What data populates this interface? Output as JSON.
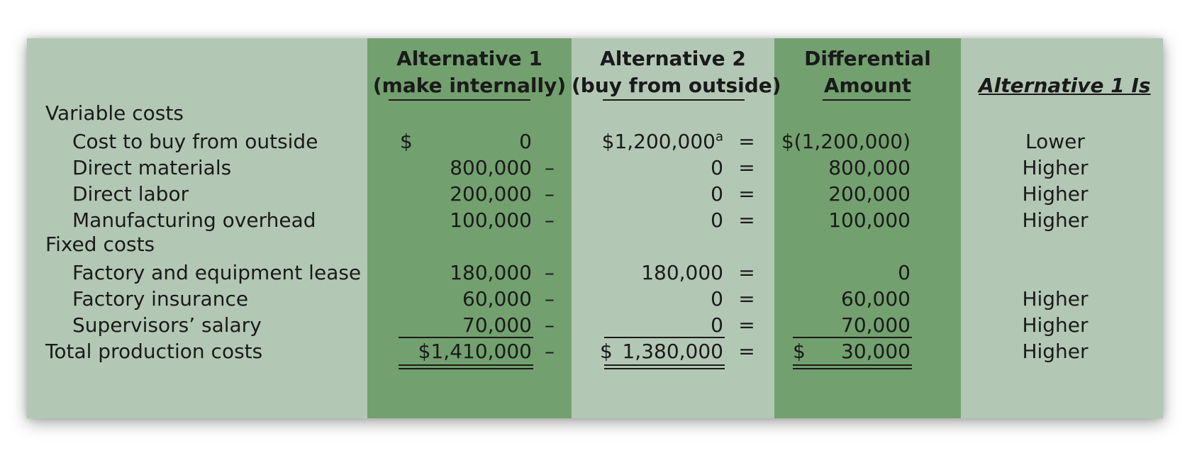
{
  "headers": {
    "alt1_line1": "Alternative 1",
    "alt1_line2": "(make internally)",
    "alt2_line1": "Alternative 2",
    "alt2_line2": "(buy from outside)",
    "diff_line1": "Differential",
    "diff_line2": "Amount",
    "status": "Alternative 1 Is"
  },
  "sections": {
    "variable": "Variable costs",
    "fixed": "Fixed costs"
  },
  "rows": [
    {
      "label": "Cost to buy from outside",
      "a1_sym": "$",
      "a1": "0",
      "op1": "",
      "a2": "$1,200,000",
      "a2_sup": "a",
      "op2": "=",
      "diff": "$(1,200,000)",
      "diff_sym": "",
      "status": "Lower"
    },
    {
      "label": "Direct materials",
      "a1_sym": "",
      "a1": "800,000",
      "op1": "–",
      "a2": "0",
      "a2_sup": "",
      "op2": "=",
      "diff": "800,000",
      "diff_sym": "",
      "status": "Higher"
    },
    {
      "label": "Direct labor",
      "a1_sym": "",
      "a1": "200,000",
      "op1": "–",
      "a2": "0",
      "a2_sup": "",
      "op2": "=",
      "diff": "200,000",
      "diff_sym": "",
      "status": "Higher"
    },
    {
      "label": "Manufacturing overhead",
      "a1_sym": "",
      "a1": "100,000",
      "op1": "–",
      "a2": "0",
      "a2_sup": "",
      "op2": "=",
      "diff": "100,000",
      "diff_sym": "",
      "status": "Higher"
    },
    {
      "label": "Factory and equipment lease",
      "a1_sym": "",
      "a1": "180,000",
      "op1": "–",
      "a2": "180,000",
      "a2_sup": "",
      "op2": "=",
      "diff": "0",
      "diff_sym": "",
      "status": ""
    },
    {
      "label": "Factory insurance",
      "a1_sym": "",
      "a1": "60,000",
      "op1": "–",
      "a2": "0",
      "a2_sup": "",
      "op2": "=",
      "diff": "60,000",
      "diff_sym": "",
      "status": "Higher"
    },
    {
      "label": "Supervisors’ salary",
      "a1_sym": "",
      "a1": "70,000",
      "op1": "–",
      "a2": "0",
      "a2_sup": "",
      "op2": "=",
      "diff": "70,000",
      "diff_sym": "",
      "status": "Higher"
    }
  ],
  "total": {
    "label": "Total production costs",
    "a1": "$1,410,000",
    "op1": "–",
    "a2_sym": "$",
    "a2": "1,380,000",
    "op2": "=",
    "diff_sym": "$",
    "diff": "30,000",
    "status": "Higher"
  }
}
